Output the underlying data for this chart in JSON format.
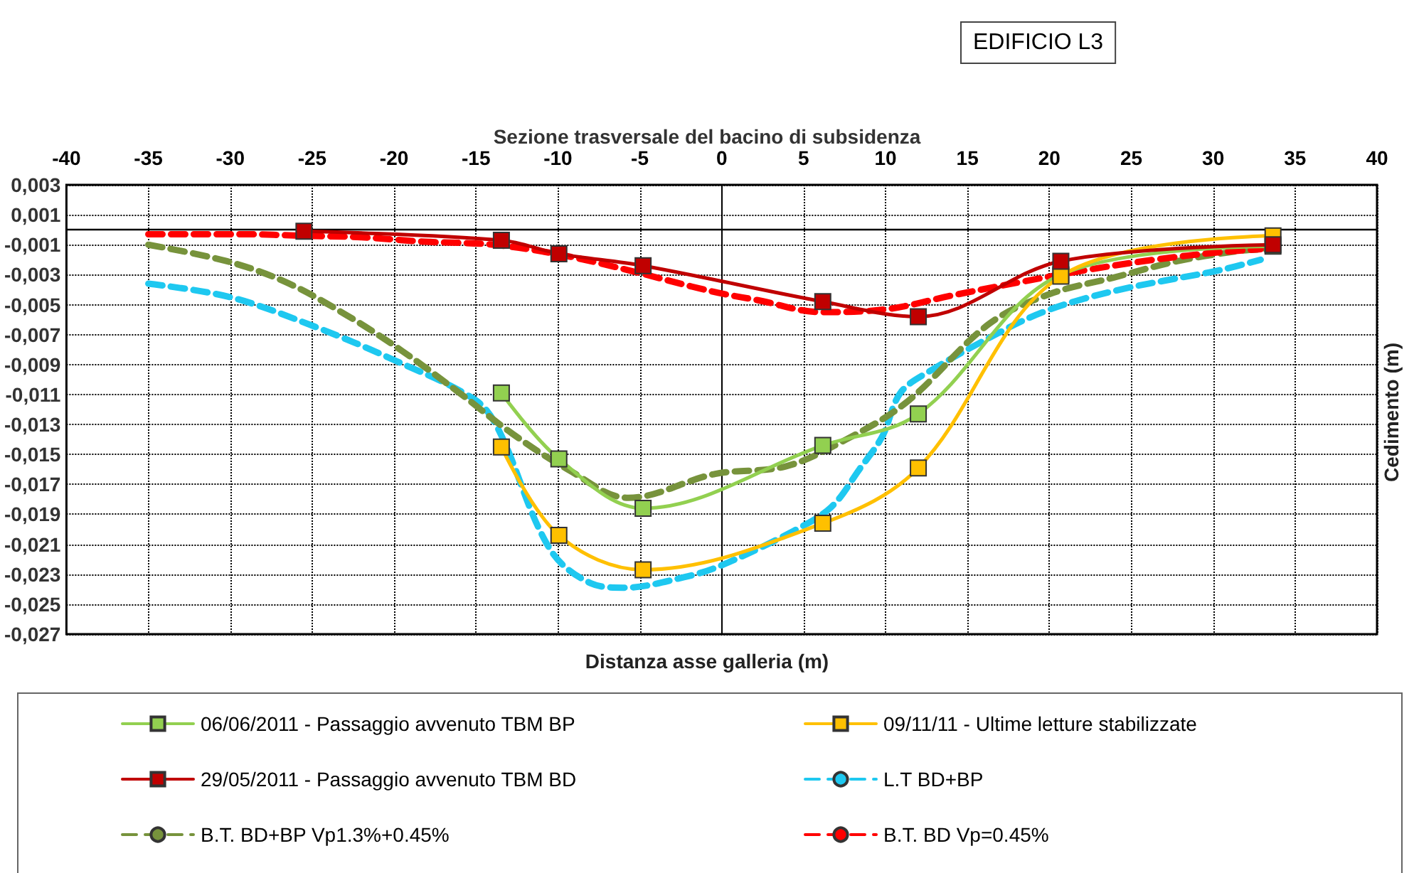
{
  "chart_data": {
    "type": "line",
    "title": "Sezione trasversale del bacino di subsidenza",
    "xlabel": "Distanza asse galleria (m)",
    "ylabel": "Cedimento (m)",
    "annotations": [
      "EDIFICIO L3"
    ],
    "xlim": [
      -40,
      40
    ],
    "xticks": [
      -40,
      -35,
      -30,
      -25,
      -20,
      -15,
      -10,
      -5,
      0,
      5,
      10,
      15,
      20,
      25,
      30,
      35,
      40
    ],
    "ylim": [
      -0.027,
      0.003
    ],
    "yticks": [
      {
        "value": 0.003,
        "label": "0,003"
      },
      {
        "value": 0.001,
        "label": "0,001"
      },
      {
        "value": -0.001,
        "label": "-0,001"
      },
      {
        "value": -0.003,
        "label": "-0,003"
      },
      {
        "value": -0.005,
        "label": "-0,005"
      },
      {
        "value": -0.007,
        "label": "-0,007"
      },
      {
        "value": -0.009,
        "label": "-0,009"
      },
      {
        "value": -0.011,
        "label": "-0,011"
      },
      {
        "value": -0.013,
        "label": "-0,013"
      },
      {
        "value": -0.015,
        "label": "-0,015"
      },
      {
        "value": -0.017,
        "label": "-0,017"
      },
      {
        "value": -0.019,
        "label": "-0,019"
      },
      {
        "value": -0.021,
        "label": "-0,021"
      },
      {
        "value": -0.023,
        "label": "-0,023"
      },
      {
        "value": -0.025,
        "label": "-0,025"
      },
      {
        "value": -0.027,
        "label": "-0,027"
      }
    ],
    "grid": true,
    "legend": "bottom",
    "ref_lines": [
      {
        "axis": "y",
        "value": 0,
        "color": "#000000",
        "line_style": "solid"
      }
    ],
    "series": [
      {
        "name": "06/06/2011 - Passaggio avvenuto TBM BP",
        "color": "#92d050",
        "marker": "square",
        "line_style": "solid",
        "x": [
          -13.45,
          -9.94,
          -4.8,
          6.17,
          12.0,
          20.7,
          33.65
        ],
        "values": [
          -0.0109,
          -0.0153,
          -0.0186,
          -0.0144,
          -0.0123,
          -0.003,
          -0.0011
        ]
      },
      {
        "name": "09/11/11 - Ultime letture stabilizzate",
        "color": "#ffc000",
        "marker": "square",
        "line_style": "solid",
        "x": [
          -13.45,
          -9.94,
          -4.8,
          6.17,
          12.0,
          20.7,
          33.65
        ],
        "values": [
          -0.0145,
          -0.0204,
          -0.0227,
          -0.0196,
          -0.0159,
          -0.0031,
          -0.0004
        ]
      },
      {
        "name": "29/05/2011 - Passaggio avvenuto TBM BD",
        "color": "#c00000",
        "marker": "square",
        "line_style": "solid",
        "x": [
          -25.5,
          -13.45,
          -9.94,
          -4.8,
          6.17,
          12.0,
          20.7,
          33.65
        ],
        "values": [
          -0.0001,
          -0.0007,
          -0.0016,
          -0.0024,
          -0.0048,
          -0.0058,
          -0.0021,
          -0.001
        ]
      },
      {
        "name": "L.T BD+BP",
        "color": "#1ec8f0",
        "marker": "none",
        "line_style": "dashed",
        "x": [
          -35,
          -30,
          -25,
          -20,
          -15,
          -13.6,
          -10.5,
          -8.0,
          -6.0,
          -2.3,
          0,
          4.4,
          6.7,
          8.4,
          9.8,
          10.9,
          12.6,
          17.4,
          19.6,
          21.8,
          24.7,
          27.5,
          30.4,
          32.9
        ],
        "values": [
          -0.0036,
          -0.0045,
          -0.0064,
          -0.0087,
          -0.0114,
          -0.0134,
          -0.0213,
          -0.0236,
          -0.0239,
          -0.0232,
          -0.0224,
          -0.0201,
          -0.0185,
          -0.016,
          -0.0138,
          -0.0109,
          -0.0095,
          -0.0066,
          -0.0055,
          -0.0047,
          -0.0039,
          -0.0033,
          -0.0027,
          -0.002
        ]
      },
      {
        "name": "B.T. BD+BP Vp1.3%+0.45%",
        "color": "#77933c",
        "marker": "none",
        "line_style": "dashed",
        "x": [
          -35,
          -30.2,
          -26.6,
          -22.9,
          -19.5,
          -16,
          -12.8,
          -9.4,
          -5.7,
          -0.4,
          3.9,
          7.6,
          11.3,
          16.3,
          20,
          23.9,
          27.8,
          31.7,
          33.4
        ],
        "values": [
          -0.001,
          -0.0021,
          -0.0035,
          -0.0057,
          -0.0081,
          -0.0109,
          -0.0136,
          -0.016,
          -0.0179,
          -0.0163,
          -0.0158,
          -0.014,
          -0.0115,
          -0.0063,
          -0.0043,
          -0.0032,
          -0.0021,
          -0.0014,
          -0.0013
        ]
      },
      {
        "name": "B.T. BD Vp=0.45%",
        "color": "#ff0000",
        "marker": "none",
        "line_style": "dashed",
        "x": [
          -35,
          -29.1,
          -25.6,
          -22,
          -18.1,
          -13.9,
          -9.7,
          -5.7,
          -1.8,
          0.2,
          2.2,
          6.1,
          10.1,
          14,
          18.2,
          22.2,
          26.4,
          30.4,
          32.9
        ],
        "values": [
          -0.0003,
          -0.0003,
          -0.0004,
          -0.0005,
          -0.0008,
          -0.001,
          -0.0017,
          -0.0027,
          -0.0038,
          -0.0043,
          -0.0047,
          -0.0055,
          -0.0053,
          -0.0044,
          -0.0035,
          -0.0027,
          -0.002,
          -0.0015,
          -0.0013
        ]
      }
    ]
  }
}
